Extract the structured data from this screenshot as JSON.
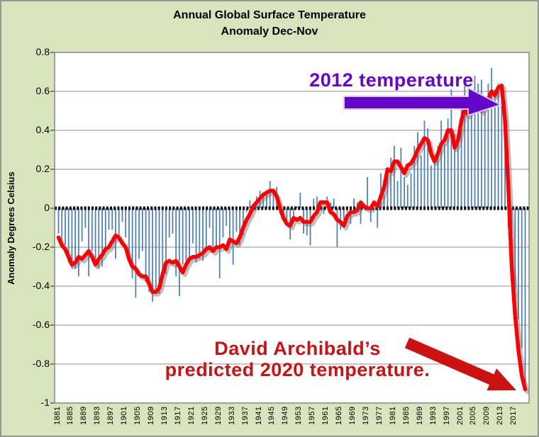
{
  "title": {
    "line1": "Annual Global Surface Temperature",
    "line2": "Anomaly Dec-Nov"
  },
  "y_axis_title": "Anomaly Degrees Celsius",
  "annotations": {
    "temp2012": {
      "label": "2012 temperature",
      "color": "#6606cc",
      "arrow_color": "#6606cc"
    },
    "prediction": {
      "line1": "David Archibald’s",
      "line2": "predicted 2020 temperature.",
      "color": "#cc1111",
      "arrow_color": "#cc1111"
    }
  },
  "colors": {
    "background": "#d8e4bc",
    "frame_border": "#969696",
    "plot_background": "#ffffff",
    "plot_border": "#808080",
    "gridline": "#8f8f8f",
    "bar": "#4f81bd",
    "line": "#ff0000",
    "zero_line": "#000000"
  },
  "chart_data": {
    "type": "bar",
    "subtype": "needle-bars-with-smoothed-line",
    "title": "Annual Global Surface Temperature Anomaly Dec-Nov",
    "xlabel": "",
    "ylabel": "Anomaly Degrees Celsius",
    "ylim": [
      -1,
      0.8
    ],
    "y_step": 0.2,
    "grid": "horizontal",
    "legend": "none",
    "start_year": 1881,
    "end_year": 2020,
    "x_tick_interval": 4,
    "x_tick_labels": [
      "1881",
      "1885",
      "1889",
      "1893",
      "1897",
      "1901",
      "1905",
      "1909",
      "1913",
      "1917",
      "1921",
      "1925",
      "1929",
      "1933",
      "1937",
      "1941",
      "1945",
      "1949",
      "1953",
      "1957",
      "1961",
      "1965",
      "1969",
      "1973",
      "1977",
      "1981",
      "1985",
      "1989",
      "1993",
      "1997",
      "2001",
      "2005",
      "2009",
      "2013",
      "2017"
    ],
    "y_tick_labels": [
      "0.8",
      "0.6",
      "0.4",
      "0.2",
      "0",
      "-0.2",
      "-0.4",
      "-0.6",
      "-0.8",
      "-1"
    ],
    "series": [
      {
        "name": "annual-anomaly-bars",
        "role": "bars"
      },
      {
        "name": "smoothed-anomaly-line",
        "role": "line"
      }
    ],
    "bar_values": [
      -0.13,
      -0.16,
      -0.19,
      -0.28,
      -0.31,
      -0.31,
      -0.35,
      -0.17,
      -0.1,
      -0.35,
      -0.22,
      -0.27,
      -0.31,
      -0.3,
      -0.22,
      -0.11,
      -0.11,
      -0.26,
      -0.17,
      -0.07,
      -0.15,
      -0.27,
      -0.36,
      -0.46,
      -0.26,
      -0.22,
      -0.38,
      -0.43,
      -0.48,
      -0.43,
      -0.44,
      -0.36,
      -0.34,
      -0.15,
      -0.13,
      -0.35,
      -0.45,
      -0.29,
      -0.27,
      -0.27,
      -0.18,
      -0.28,
      -0.26,
      -0.27,
      -0.22,
      -0.1,
      -0.21,
      -0.2,
      -0.36,
      -0.15,
      -0.09,
      -0.16,
      -0.29,
      -0.12,
      -0.19,
      -0.14,
      -0.02,
      0.04,
      -0.01,
      0.06,
      0.09,
      0.06,
      0.09,
      0.14,
      0.08,
      0.11,
      -0.03,
      -0.06,
      -0.08,
      -0.16,
      -0.07,
      0.01,
      0.08,
      -0.13,
      -0.14,
      -0.19,
      0.05,
      0.06,
      0.03,
      -0.03,
      0.06,
      0.03,
      0.05,
      -0.2,
      -0.11,
      -0.06,
      -0.02,
      -0.08,
      0.05,
      0.03,
      -0.08,
      0.01,
      0.16,
      -0.07,
      -0.01,
      -0.1,
      0.18,
      0.07,
      0.16,
      0.26,
      0.32,
      0.14,
      0.31,
      0.16,
      0.12,
      0.18,
      0.32,
      0.39,
      0.27,
      0.45,
      0.41,
      0.22,
      0.23,
      0.32,
      0.45,
      0.33,
      0.46,
      0.61,
      0.38,
      0.39,
      0.54,
      0.63,
      0.62,
      0.54,
      0.68,
      0.64,
      0.66,
      0.54,
      0.64,
      0.72,
      0.61,
      0.64,
      0.62,
      0.55,
      -0.1,
      -0.26,
      -0.42,
      -0.57,
      -0.72,
      -0.93
    ],
    "line_values": [
      -0.15,
      -0.19,
      -0.21,
      -0.25,
      -0.29,
      -0.28,
      -0.25,
      -0.26,
      -0.24,
      -0.22,
      -0.25,
      -0.29,
      -0.26,
      -0.24,
      -0.21,
      -0.2,
      -0.17,
      -0.14,
      -0.15,
      -0.18,
      -0.2,
      -0.26,
      -0.3,
      -0.31,
      -0.34,
      -0.35,
      -0.35,
      -0.39,
      -0.43,
      -0.43,
      -0.41,
      -0.34,
      -0.28,
      -0.27,
      -0.28,
      -0.27,
      -0.3,
      -0.33,
      -0.29,
      -0.26,
      -0.25,
      -0.25,
      -0.24,
      -0.23,
      -0.21,
      -0.2,
      -0.22,
      -0.2,
      -0.2,
      -0.19,
      -0.21,
      -0.16,
      -0.17,
      -0.18,
      -0.15,
      -0.1,
      -0.06,
      -0.03,
      0.01,
      0.03,
      0.05,
      0.07,
      0.08,
      0.09,
      0.09,
      0.06,
      0.0,
      -0.05,
      -0.08,
      -0.09,
      -0.05,
      -0.06,
      -0.05,
      -0.07,
      -0.07,
      -0.07,
      -0.04,
      -0.02,
      0.03,
      0.03,
      0.03,
      -0.02,
      -0.03,
      -0.06,
      -0.07,
      -0.09,
      -0.04,
      -0.02,
      -0.02,
      -0.01,
      0.03,
      0.01,
      0.0,
      0.0,
      0.03,
      0.01,
      0.06,
      0.11,
      0.2,
      0.19,
      0.24,
      0.24,
      0.21,
      0.18,
      0.22,
      0.23,
      0.26,
      0.3,
      0.33,
      0.36,
      0.35,
      0.28,
      0.24,
      0.28,
      0.33,
      0.35,
      0.4,
      0.4,
      0.31,
      0.35,
      0.45,
      0.51,
      0.48,
      0.52,
      0.56,
      0.52,
      0.5,
      0.53,
      0.56,
      0.6,
      0.58,
      0.62,
      0.63,
      0.45,
      0.1,
      -0.3,
      -0.55,
      -0.73,
      -0.86,
      -0.93
    ]
  }
}
